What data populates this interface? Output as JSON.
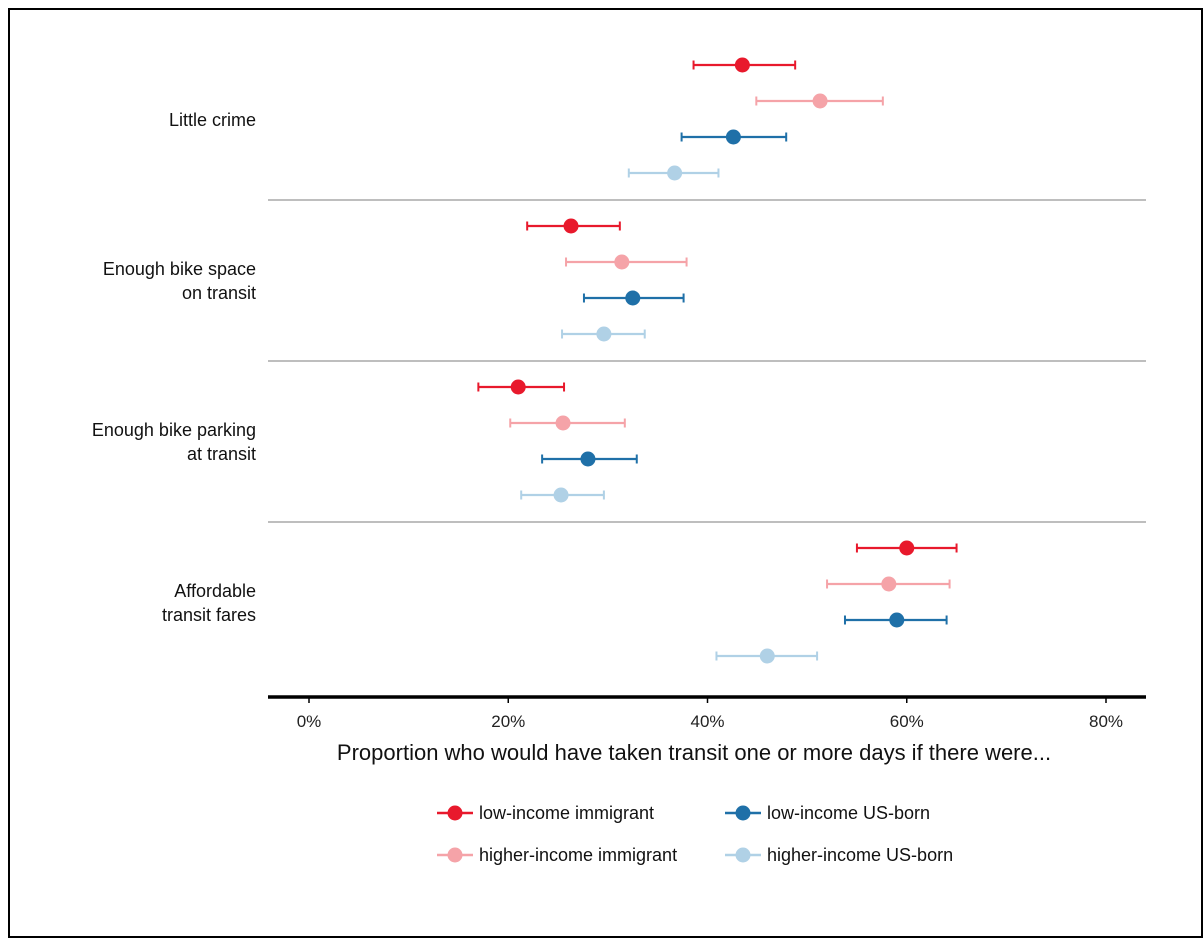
{
  "chart_data": {
    "type": "scatter",
    "subtype": "dot-with-error-bars",
    "title": "",
    "xlabel": "Proportion who would have taken transit one or more days if there were...",
    "ylabel": "",
    "xlim": [
      -2,
      84
    ],
    "x_ticks": [
      0,
      20,
      40,
      60,
      80
    ],
    "x_tick_labels": [
      "0%",
      "20%",
      "40%",
      "60%",
      "80%"
    ],
    "grid": false,
    "legend_position": "bottom",
    "categories": [
      {
        "label_lines": [
          "Little crime"
        ]
      },
      {
        "label_lines": [
          "Enough bike space",
          "on transit"
        ]
      },
      {
        "label_lines": [
          "Enough bike parking",
          "at transit"
        ]
      },
      {
        "label_lines": [
          "Affordable",
          "transit fares"
        ]
      }
    ],
    "series": [
      {
        "name": "low-income immigrant",
        "color": "#e8192c",
        "values": [
          43.5,
          26.3,
          21.0,
          60.0
        ],
        "lower": [
          38.6,
          21.9,
          17.0,
          55.0
        ],
        "upper": [
          48.8,
          31.2,
          25.6,
          65.0
        ]
      },
      {
        "name": "higher-income immigrant",
        "color": "#f5a3a8",
        "values": [
          51.3,
          31.4,
          25.5,
          58.2
        ],
        "lower": [
          44.9,
          25.8,
          20.2,
          52.0
        ],
        "upper": [
          57.6,
          37.9,
          31.7,
          64.3
        ]
      },
      {
        "name": "low-income US-born",
        "color": "#1f70a8",
        "values": [
          42.6,
          32.5,
          28.0,
          59.0
        ],
        "lower": [
          37.4,
          27.6,
          23.4,
          53.8
        ],
        "upper": [
          47.9,
          37.6,
          32.9,
          64.0
        ]
      },
      {
        "name": "higher-income US-born",
        "color": "#b0d1e6",
        "values": [
          36.7,
          29.6,
          25.3,
          46.0
        ],
        "lower": [
          32.1,
          25.4,
          21.3,
          40.9
        ],
        "upper": [
          41.1,
          33.7,
          29.6,
          51.0
        ]
      }
    ]
  }
}
